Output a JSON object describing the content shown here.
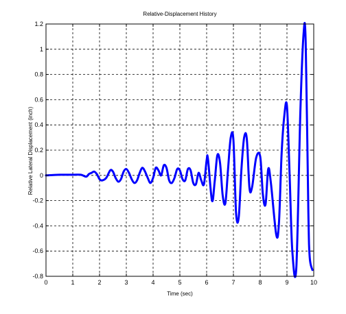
{
  "chart_data": {
    "type": "line",
    "title": "Relative-Displacement History",
    "xlabel": "Time (sec)",
    "ylabel": "Relative Lateral Displacement (inch)",
    "xlim": [
      0,
      10
    ],
    "ylim": [
      -0.8,
      1.2
    ],
    "x_ticks": [
      0,
      1,
      2,
      3,
      4,
      5,
      6,
      7,
      8,
      9,
      10
    ],
    "x_tick_labels": [
      "0",
      "1",
      "2",
      "3",
      "4",
      "5",
      "6",
      "7",
      "8",
      "9",
      "10"
    ],
    "y_ticks": [
      -0.8,
      -0.6,
      -0.4,
      -0.2,
      0,
      0.2,
      0.4,
      0.6,
      0.8,
      1,
      1.2
    ],
    "y_tick_labels": [
      "-0.8",
      "-0.6",
      "-0.4",
      "-0.2",
      "0",
      "0.2",
      "0.4",
      "0.6",
      "0.8",
      "1",
      "1.2"
    ],
    "grid": true,
    "grid_style": "dashed",
    "line_color": "#0000ff",
    "series": [
      {
        "x": [
          0,
          0.5,
          1.0,
          1.3,
          1.5,
          1.6,
          1.7,
          1.8,
          1.9,
          2.0,
          2.1,
          2.25,
          2.4,
          2.5,
          2.6,
          2.7,
          2.8,
          2.9,
          3.0,
          3.1,
          3.2,
          3.3,
          3.4,
          3.5,
          3.6,
          3.7,
          3.8,
          3.9,
          4.0,
          4.1,
          4.2,
          4.3,
          4.4,
          4.5,
          4.6,
          4.7,
          4.8,
          4.9,
          5.0,
          5.1,
          5.2,
          5.3,
          5.4,
          5.5,
          5.6,
          5.7,
          5.8,
          5.9,
          6.0,
          6.05,
          6.2,
          6.3,
          6.4,
          6.5,
          6.6,
          6.7,
          6.8,
          6.9,
          7.0,
          7.1,
          7.2,
          7.3,
          7.4,
          7.5,
          7.6,
          7.7,
          7.85,
          8.0,
          8.1,
          8.2,
          8.3,
          8.4,
          8.6,
          8.7,
          8.8,
          8.9,
          9.0,
          9.1,
          9.2,
          9.35,
          9.5,
          9.62,
          9.7,
          9.8,
          9.85,
          9.95
        ],
        "y": [
          0,
          0.005,
          0.005,
          0.005,
          -0.01,
          0.01,
          0.02,
          0.03,
          0.01,
          -0.03,
          -0.04,
          -0.02,
          0.04,
          0.03,
          -0.02,
          -0.05,
          -0.03,
          0.03,
          0.05,
          0.02,
          -0.03,
          -0.06,
          -0.04,
          0.02,
          0.06,
          0.03,
          -0.02,
          -0.06,
          -0.02,
          0.06,
          0.04,
          0.0,
          0.08,
          0.06,
          -0.04,
          -0.06,
          -0.02,
          0.05,
          0.04,
          -0.03,
          -0.04,
          0.05,
          0.04,
          -0.06,
          -0.07,
          0.02,
          -0.04,
          -0.07,
          0.12,
          0.13,
          -0.2,
          -0.05,
          0.16,
          0.1,
          -0.16,
          -0.22,
          0.05,
          0.3,
          0.28,
          -0.3,
          -0.33,
          0.05,
          0.3,
          0.29,
          -0.1,
          -0.09,
          0.14,
          0.15,
          -0.15,
          -0.23,
          0.05,
          -0.06,
          -0.47,
          -0.38,
          0.17,
          0.47,
          0.55,
          0.0,
          -0.6,
          -0.73,
          0.5,
          1.12,
          1.05,
          -0.3,
          -0.65,
          -0.75
        ]
      }
    ]
  }
}
